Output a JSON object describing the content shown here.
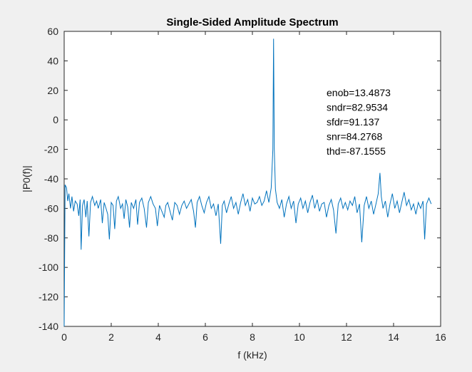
{
  "chart_data": {
    "type": "line",
    "title": "Single-Sided Amplitude Spectrum",
    "xlabel": "f (kHz)",
    "ylabel": "|P0(f)|",
    "xlim": [
      0,
      16
    ],
    "ylim": [
      -140,
      60
    ],
    "xticks": [
      0,
      2,
      4,
      6,
      8,
      10,
      12,
      14,
      16
    ],
    "yticks": [
      -140,
      -120,
      -100,
      -80,
      -60,
      -40,
      -20,
      0,
      20,
      40,
      60
    ],
    "grid": false,
    "line_color": "#0072bd",
    "annotations": [
      "enob=13.4873",
      "sndr=82.9534",
      "sfdr=91.137",
      "snr=84.2768",
      "thd=-87.1555"
    ],
    "series": [
      {
        "points": [
          [
            0,
            -140
          ],
          [
            0.04,
            -44
          ],
          [
            0.1,
            -46
          ],
          [
            0.15,
            -55
          ],
          [
            0.2,
            -50
          ],
          [
            0.27,
            -60
          ],
          [
            0.33,
            -52
          ],
          [
            0.4,
            -62
          ],
          [
            0.47,
            -55
          ],
          [
            0.55,
            -57
          ],
          [
            0.62,
            -65
          ],
          [
            0.68,
            -54
          ],
          [
            0.72,
            -88
          ],
          [
            0.78,
            -58
          ],
          [
            0.85,
            -54
          ],
          [
            0.92,
            -66
          ],
          [
            0.98,
            -55
          ],
          [
            1.05,
            -79
          ],
          [
            1.12,
            -56
          ],
          [
            1.2,
            -52
          ],
          [
            1.3,
            -58
          ],
          [
            1.38,
            -55
          ],
          [
            1.45,
            -60
          ],
          [
            1.55,
            -54
          ],
          [
            1.62,
            -70
          ],
          [
            1.7,
            -56
          ],
          [
            1.78,
            -60
          ],
          [
            1.85,
            -64
          ],
          [
            1.92,
            -81
          ],
          [
            2.0,
            -56
          ],
          [
            2.08,
            -58
          ],
          [
            2.15,
            -74
          ],
          [
            2.22,
            -55
          ],
          [
            2.3,
            -52
          ],
          [
            2.4,
            -60
          ],
          [
            2.48,
            -57
          ],
          [
            2.55,
            -67
          ],
          [
            2.62,
            -54
          ],
          [
            2.7,
            -59
          ],
          [
            2.78,
            -73
          ],
          [
            2.85,
            -56
          ],
          [
            2.95,
            -60
          ],
          [
            3.05,
            -54
          ],
          [
            3.12,
            -71
          ],
          [
            3.2,
            -56
          ],
          [
            3.3,
            -53
          ],
          [
            3.4,
            -60
          ],
          [
            3.5,
            -73
          ],
          [
            3.58,
            -56
          ],
          [
            3.68,
            -52
          ],
          [
            3.78,
            -57
          ],
          [
            3.88,
            -60
          ],
          [
            3.96,
            -72
          ],
          [
            4.05,
            -58
          ],
          [
            4.15,
            -62
          ],
          [
            4.25,
            -66
          ],
          [
            4.32,
            -58
          ],
          [
            4.4,
            -56
          ],
          [
            4.5,
            -62
          ],
          [
            4.6,
            -68
          ],
          [
            4.7,
            -56
          ],
          [
            4.8,
            -58
          ],
          [
            4.9,
            -64
          ],
          [
            5.0,
            -58
          ],
          [
            5.1,
            -55
          ],
          [
            5.2,
            -60
          ],
          [
            5.3,
            -57
          ],
          [
            5.4,
            -54
          ],
          [
            5.5,
            -62
          ],
          [
            5.58,
            -73
          ],
          [
            5.65,
            -56
          ],
          [
            5.75,
            -52
          ],
          [
            5.85,
            -58
          ],
          [
            5.95,
            -63
          ],
          [
            6.05,
            -56
          ],
          [
            6.15,
            -52
          ],
          [
            6.25,
            -60
          ],
          [
            6.35,
            -57
          ],
          [
            6.45,
            -65
          ],
          [
            6.55,
            -57
          ],
          [
            6.65,
            -84
          ],
          [
            6.72,
            -58
          ],
          [
            6.8,
            -55
          ],
          [
            6.9,
            -63
          ],
          [
            7.0,
            -57
          ],
          [
            7.1,
            -52
          ],
          [
            7.2,
            -60
          ],
          [
            7.3,
            -56
          ],
          [
            7.4,
            -64
          ],
          [
            7.5,
            -56
          ],
          [
            7.6,
            -50
          ],
          [
            7.7,
            -58
          ],
          [
            7.8,
            -54
          ],
          [
            7.9,
            -62
          ],
          [
            8.0,
            -53
          ],
          [
            8.1,
            -57
          ],
          [
            8.2,
            -56
          ],
          [
            8.3,
            -52
          ],
          [
            8.4,
            -58
          ],
          [
            8.5,
            -55
          ],
          [
            8.6,
            -48
          ],
          [
            8.7,
            -56
          ],
          [
            8.8,
            -46
          ],
          [
            8.87,
            -20
          ],
          [
            8.9,
            55
          ],
          [
            8.93,
            -20
          ],
          [
            8.98,
            -47
          ],
          [
            9.05,
            -56
          ],
          [
            9.15,
            -60
          ],
          [
            9.25,
            -54
          ],
          [
            9.35,
            -66
          ],
          [
            9.45,
            -57
          ],
          [
            9.55,
            -52
          ],
          [
            9.65,
            -60
          ],
          [
            9.75,
            -55
          ],
          [
            9.85,
            -70
          ],
          [
            9.95,
            -57
          ],
          [
            10.05,
            -53
          ],
          [
            10.15,
            -60
          ],
          [
            10.25,
            -55
          ],
          [
            10.35,
            -63
          ],
          [
            10.45,
            -56
          ],
          [
            10.55,
            -51
          ],
          [
            10.65,
            -60
          ],
          [
            10.75,
            -54
          ],
          [
            10.85,
            -62
          ],
          [
            10.95,
            -57
          ],
          [
            11.05,
            -56
          ],
          [
            11.15,
            -66
          ],
          [
            11.25,
            -58
          ],
          [
            11.35,
            -54
          ],
          [
            11.45,
            -61
          ],
          [
            11.55,
            -77
          ],
          [
            11.65,
            -57
          ],
          [
            11.75,
            -53
          ],
          [
            11.85,
            -60
          ],
          [
            11.95,
            -56
          ],
          [
            12.05,
            -61
          ],
          [
            12.15,
            -55
          ],
          [
            12.25,
            -58
          ],
          [
            12.35,
            -52
          ],
          [
            12.45,
            -63
          ],
          [
            12.55,
            -57
          ],
          [
            12.65,
            -83
          ],
          [
            12.75,
            -58
          ],
          [
            12.85,
            -52
          ],
          [
            12.95,
            -60
          ],
          [
            13.05,
            -55
          ],
          [
            13.15,
            -64
          ],
          [
            13.25,
            -57
          ],
          [
            13.35,
            -50
          ],
          [
            13.42,
            -36
          ],
          [
            13.48,
            -52
          ],
          [
            13.55,
            -60
          ],
          [
            13.65,
            -55
          ],
          [
            13.75,
            -66
          ],
          [
            13.85,
            -57
          ],
          [
            13.95,
            -50
          ],
          [
            14.05,
            -60
          ],
          [
            14.15,
            -55
          ],
          [
            14.25,
            -63
          ],
          [
            14.35,
            -56
          ],
          [
            14.45,
            -49
          ],
          [
            14.55,
            -58
          ],
          [
            14.65,
            -54
          ],
          [
            14.75,
            -61
          ],
          [
            14.85,
            -57
          ],
          [
            14.95,
            -64
          ],
          [
            15.05,
            -56
          ],
          [
            15.15,
            -60
          ],
          [
            15.25,
            -55
          ],
          [
            15.32,
            -81
          ],
          [
            15.4,
            -57
          ],
          [
            15.5,
            -53
          ],
          [
            15.6,
            -57
          ]
        ]
      }
    ]
  }
}
